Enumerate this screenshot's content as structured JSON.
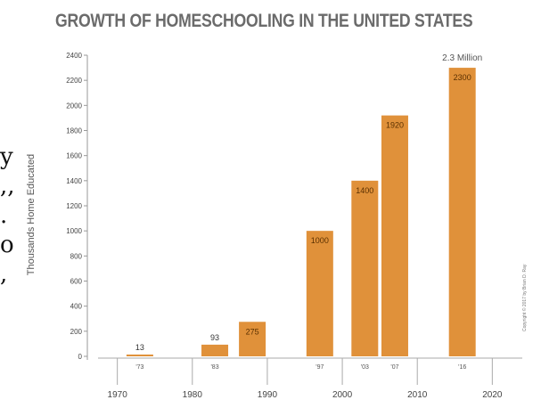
{
  "chart_data": {
    "type": "bar",
    "title": "GROWTH OF HOMESCHOOLING IN THE UNITED STATES",
    "xlabel": "",
    "ylabel": "Thousands Home Educated",
    "ylim": [
      0,
      2400
    ],
    "yticks": [
      0,
      200,
      400,
      600,
      800,
      1000,
      1200,
      1400,
      1600,
      1800,
      2000,
      2200,
      2400
    ],
    "xlim": [
      1966,
      2024
    ],
    "xticks": [
      1970,
      1980,
      1990,
      2000,
      2010,
      2020
    ],
    "grid": false,
    "bar_color": "#e0913a",
    "bars": [
      {
        "year": 1973,
        "short": "'73",
        "value": 13,
        "label": "13"
      },
      {
        "year": 1983,
        "short": "'83",
        "value": 93,
        "label": "93"
      },
      {
        "year": 1988,
        "short": "",
        "value": 275,
        "label": "275"
      },
      {
        "year": 1997,
        "short": "'97",
        "value": 1000,
        "label": "1000"
      },
      {
        "year": 2003,
        "short": "'03",
        "value": 1400,
        "label": "1400"
      },
      {
        "year": 2007,
        "short": "'07",
        "value": 1920,
        "label": "1920"
      },
      {
        "year": 2016,
        "short": "'16",
        "value": 2300,
        "label": "2300"
      }
    ],
    "annotation": "2.3 Million"
  },
  "side_text": [
    "y",
    ",,",
    ".",
    "o",
    ","
  ],
  "copyright": "Copyright © 2017 by Brian D. Ray"
}
